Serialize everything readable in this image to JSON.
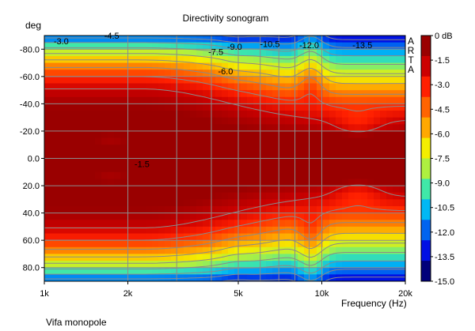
{
  "chart_data": {
    "type": "heatmap",
    "title": "Directivity sonogram",
    "ylabel": "deg",
    "xlabel": "Frequency (Hz)",
    "x_scale": "log",
    "xlim": [
      1000,
      20000
    ],
    "ylim": [
      -90,
      90
    ],
    "y_axis_inverted": true,
    "grid": true,
    "x_ticks": [
      {
        "label": "1k",
        "value": 1000
      },
      {
        "label": "2k",
        "value": 2000
      },
      {
        "label": "5k",
        "value": 5000
      },
      {
        "label": "10k",
        "value": 10000
      },
      {
        "label": "20k",
        "value": 20000
      }
    ],
    "x_minor_ticks": [
      3000,
      4000,
      6000,
      7000,
      8000,
      9000
    ],
    "y_ticks": [
      {
        "label": "-80.0",
        "value": -80
      },
      {
        "label": "-60.0",
        "value": -60
      },
      {
        "label": "-40.0",
        "value": -40
      },
      {
        "label": "-20.0",
        "value": -20
      },
      {
        "label": "0.0",
        "value": 0
      },
      {
        "label": "20.0",
        "value": 20
      },
      {
        "label": "40.0",
        "value": 40
      },
      {
        "label": "60.0",
        "value": 60
      },
      {
        "label": "80.0",
        "value": 80
      }
    ],
    "colorbar": {
      "unit": "dB",
      "min": -15,
      "max": 0,
      "ticks": [
        {
          "label": "0 dB",
          "value": 0
        },
        {
          "label": "-1.5",
          "value": -1.5
        },
        {
          "label": "-3.0",
          "value": -3
        },
        {
          "label": "-4.5",
          "value": -4.5
        },
        {
          "label": "-6.0",
          "value": -6
        },
        {
          "label": "-7.5",
          "value": -7.5
        },
        {
          "label": "-9.0",
          "value": -9
        },
        {
          "label": "-10.5",
          "value": -10.5
        },
        {
          "label": "-12.0",
          "value": -12
        },
        {
          "label": "-13.5",
          "value": -13.5
        },
        {
          "label": "-15.0",
          "value": -15
        }
      ],
      "colors": [
        "#9a0000",
        "#cc0000",
        "#ff2000",
        "#ff6400",
        "#ffa800",
        "#f4ee00",
        "#aef040",
        "#40e8a8",
        "#00b8f4",
        "#0064f0",
        "#0010e4",
        "#00007a"
      ]
    },
    "contour_labels": [
      {
        "text": "-3.0",
        "x": 1150,
        "y": -86
      },
      {
        "text": "-4.5",
        "x": 1750,
        "y": -90
      },
      {
        "text": "-7.5",
        "x": 4150,
        "y": -78
      },
      {
        "text": "-9.0",
        "x": 4850,
        "y": -82
      },
      {
        "text": "-10.5",
        "x": 6500,
        "y": -84
      },
      {
        "text": "-12.0",
        "x": 9000,
        "y": -83
      },
      {
        "text": "-13.5",
        "x": 14000,
        "y": -83
      },
      {
        "text": "-6.0",
        "x": 4500,
        "y": -64
      },
      {
        "text": "-1.5",
        "x": 2250,
        "y": 4
      }
    ],
    "watermark": "ARTA",
    "caption": "Vifa monopole"
  }
}
